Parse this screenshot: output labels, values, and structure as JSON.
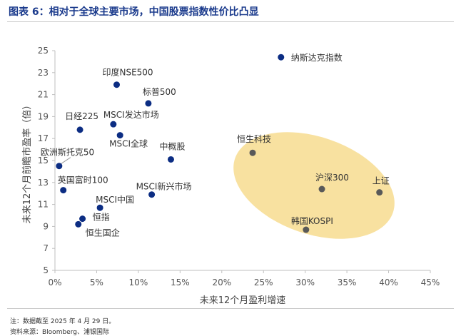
{
  "figure": {
    "title": "图表 6：相对于全球主要市场，中国股票指数性价比凸显",
    "note": "注：数据截至 2025 年 4 月 29 日。",
    "source": "资料来源：Bloomberg、浦银国际"
  },
  "colors": {
    "title": "#1a3a8c",
    "global_marker": "#0c2d83",
    "china_marker": "#595959",
    "highlight_ellipse": "#f7dc8f",
    "axis": "#bfbfbf"
  },
  "chart_data": {
    "type": "scatter",
    "xlabel": "未来12个月盈利增速",
    "ylabel": "未来12个月前瞻市盈率（倍）",
    "xlim": [
      0,
      45
    ],
    "ylim": [
      5,
      25
    ],
    "xticks": [
      0,
      5,
      10,
      15,
      20,
      25,
      30,
      35,
      40,
      45
    ],
    "xtick_labels": [
      "0%",
      "5%",
      "10%",
      "15%",
      "20%",
      "25%",
      "30%",
      "35%",
      "40%",
      "45%"
    ],
    "yticks": [
      5,
      7,
      9,
      11,
      13,
      15,
      17,
      19,
      21,
      23,
      25
    ],
    "grid": false,
    "points": [
      {
        "label": "纳斯达克指数",
        "x": 27.1,
        "y": 24.4,
        "group": "global"
      },
      {
        "label": "印度NSE500",
        "x": 7.4,
        "y": 21.9,
        "group": "global"
      },
      {
        "label": "标普500",
        "x": 11.2,
        "y": 20.2,
        "group": "global"
      },
      {
        "label": "日经225",
        "x": 3.0,
        "y": 17.8,
        "group": "global"
      },
      {
        "label": "MSCI发达市场",
        "x": 7.0,
        "y": 18.3,
        "group": "global"
      },
      {
        "label": "MSCI全球",
        "x": 7.8,
        "y": 17.3,
        "group": "global"
      },
      {
        "label": "中概股",
        "x": 13.9,
        "y": 15.1,
        "group": "global"
      },
      {
        "label": "欧洲斯托克50",
        "x": 0.5,
        "y": 14.5,
        "group": "global"
      },
      {
        "label": "英国富时100",
        "x": 1.0,
        "y": 12.3,
        "group": "global"
      },
      {
        "label": "MSCI新兴市场",
        "x": 11.6,
        "y": 11.9,
        "group": "global"
      },
      {
        "label": "MSCI中国",
        "x": 5.4,
        "y": 10.7,
        "group": "global"
      },
      {
        "label": "恒指",
        "x": 3.3,
        "y": 9.7,
        "group": "global"
      },
      {
        "label": "恒生国企",
        "x": 2.8,
        "y": 9.2,
        "group": "global"
      },
      {
        "label": "恒生科技",
        "x": 23.7,
        "y": 15.7,
        "group": "china"
      },
      {
        "label": "沪深300",
        "x": 32.0,
        "y": 12.4,
        "group": "china"
      },
      {
        "label": "上证",
        "x": 38.9,
        "y": 12.1,
        "group": "china"
      },
      {
        "label": "韩国KOSPI",
        "x": 30.1,
        "y": 8.7,
        "group": "china"
      }
    ]
  }
}
